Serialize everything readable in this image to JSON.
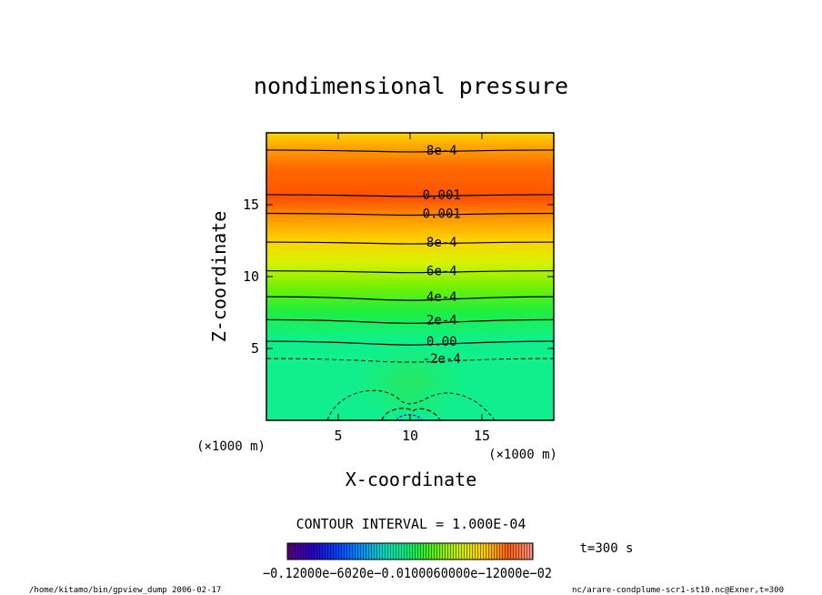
{
  "chart_data": {
    "type": "contour",
    "title": "nondimensional pressure",
    "xlabel": "X-coordinate",
    "ylabel": "Z-coordinate",
    "x_unit": "(×1000 m)",
    "y_unit": "(×1000 m)",
    "xlim": [
      0,
      20
    ],
    "ylim": [
      0,
      20
    ],
    "x_ticks": [
      5,
      10,
      15
    ],
    "y_ticks": [
      5,
      10,
      15
    ],
    "contour_interval_text": "CONTOUR INTERVAL = 1.000E-04",
    "contour_levels": [
      {
        "z": 18.8,
        "label": "8e-4",
        "dashed": false
      },
      {
        "z": 15.7,
        "label": "0.001",
        "dashed": false
      },
      {
        "z": 14.4,
        "label": "0.001",
        "dashed": false
      },
      {
        "z": 12.4,
        "label": "8e-4",
        "dashed": false
      },
      {
        "z": 10.4,
        "label": "6e-4",
        "dashed": false
      },
      {
        "z": 8.6,
        "label": "4e-4",
        "dashed": false
      },
      {
        "z": 7.0,
        "label": "2e-4",
        "dashed": false
      },
      {
        "z": 5.5,
        "label": "0.00",
        "dashed": false
      },
      {
        "z": 4.3,
        "label": "-2e-4",
        "dashed": true
      }
    ],
    "colorbar": {
      "labels": "−0.12000e−6020e−0.0100060000e−12000e−02"
    },
    "time_label": "t=300 s"
  },
  "footer": {
    "left": "/home/kitamo/bin/gpview_dump  2006-02-17",
    "right": "nc/arare-condplume-scr1-st10.nc@Exner,t=300"
  }
}
